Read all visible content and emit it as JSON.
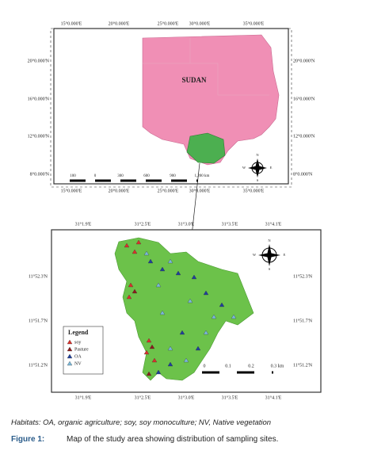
{
  "top_map": {
    "lon_labels": [
      "15°0.000'E",
      "20°0.000'E",
      "25°0.000'E",
      "30°0.000'E",
      "35°0.000'E"
    ],
    "lat_labels": [
      "20°0.000'N",
      "16°0.000'N",
      "12°0.000'N",
      "8°0.000'N"
    ],
    "country": "SUDAN",
    "scale_labels": [
      "100",
      "0",
      "300",
      "600",
      "900",
      "1,200 km"
    ],
    "compass": [
      "N",
      "E",
      "S",
      "W"
    ]
  },
  "bottom_map": {
    "lon_labels": [
      "31°1.9'E",
      "31°2.5'E",
      "31°3.0'E",
      "31°3.5'E",
      "31°4.1'E"
    ],
    "lat_labels": [
      "11°52.3'N",
      "11°51.7'N",
      "11°51.2'N"
    ],
    "legend": {
      "title": "Legend",
      "items": [
        "soy",
        "Pasture",
        "OA",
        "NV"
      ]
    },
    "scale_labels": [
      "0",
      "0.1",
      "0.2",
      "0.3 km"
    ],
    "compass": [
      "N",
      "E",
      "S",
      "W"
    ]
  },
  "caption": {
    "note": "Habitats: OA, organic agriculture; soy, soy monoculture; NV, Native vegetation",
    "label": "Figure 1:",
    "text": "Map of the study area showing distribution of sampling sites."
  }
}
